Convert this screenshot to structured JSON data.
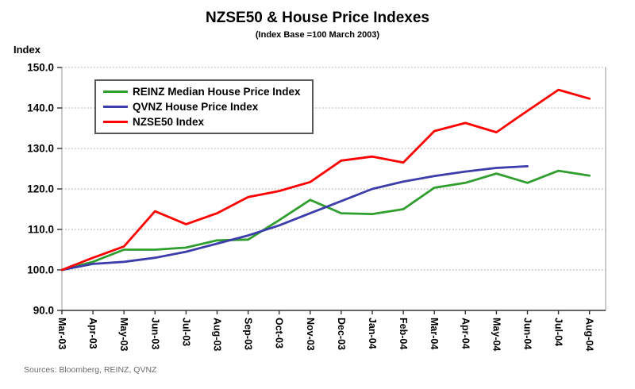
{
  "header": {
    "title": "NZSE50 & House Price Indexes",
    "subtitle": "(Index Base =100 March 2003)"
  },
  "source_note": "Sources: Bloomberg, REINZ, QVNZ",
  "chart_data": {
    "type": "line",
    "title": "NZSE50 & House Price Indexes",
    "subtitle": "(Index Base =100 March 2003)",
    "xlabel": "",
    "ylabel": "Index",
    "ylim": [
      90,
      150
    ],
    "y_ticks": [
      90,
      100,
      110,
      120,
      130,
      140,
      150
    ],
    "y_tick_labels": [
      "90.0",
      "100.0",
      "110.0",
      "120.0",
      "130.0",
      "140.0",
      "150.0"
    ],
    "grid": "horizontal-dotted",
    "legend_position": "top-left-inside",
    "x_tick_rotation": 90,
    "categories": [
      "Mar-03",
      "Apr-03",
      "May-03",
      "Jun-03",
      "Jul-03",
      "Aug-03",
      "Sep-03",
      "Oct-03",
      "Nov-03",
      "Dec-03",
      "Jan-04",
      "Feb-04",
      "Mar-04",
      "Apr-04",
      "May-04",
      "Jun-04",
      "Jul-04",
      "Aug-04"
    ],
    "series": [
      {
        "name": "REINZ Median House Price Index",
        "color": "#2f9e2f",
        "values": [
          100.0,
          102.0,
          105.0,
          105.0,
          105.5,
          107.3,
          107.5,
          112.3,
          117.3,
          114.0,
          113.8,
          115.0,
          120.3,
          121.5,
          123.8,
          121.5,
          124.5,
          123.3
        ]
      },
      {
        "name": "QVNZ House Price Index",
        "color": "#3c3caa",
        "values": [
          100.0,
          101.5,
          102.0,
          103.0,
          104.5,
          106.5,
          108.5,
          111.0,
          114.0,
          117.0,
          120.0,
          121.8,
          123.2,
          124.3,
          125.2,
          125.6,
          null,
          null
        ]
      },
      {
        "name": "NZSE50 Index",
        "color": "#ff0000",
        "values": [
          100.0,
          103.0,
          105.8,
          114.5,
          111.3,
          114.0,
          118.0,
          119.5,
          121.7,
          127.0,
          128.0,
          126.5,
          134.3,
          136.3,
          134.0,
          139.3,
          144.5,
          142.3
        ]
      }
    ],
    "colors": {
      "gridline": "#9c9c9c",
      "plot_border": "#a8a8a8",
      "axis": "#333333",
      "text": "#000000"
    }
  }
}
